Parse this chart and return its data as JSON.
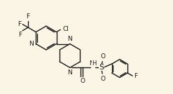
{
  "bg_color": "#faf5e4",
  "line_color": "#1a1a1a",
  "font_size": 6.5,
  "bond_width": 1.0,
  "figsize": [
    2.47,
    1.34
  ],
  "dpi": 100,
  "xlim": [
    0,
    10.5
  ],
  "ylim": [
    0,
    5.7
  ]
}
